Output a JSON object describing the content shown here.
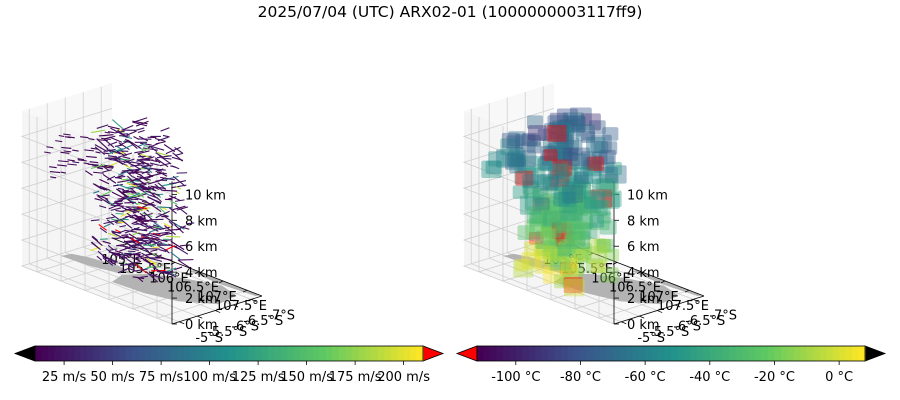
{
  "figure": {
    "title": "2025/07/04 (UTC) ARX02-01 (1000000003117ff9)"
  },
  "chart_data": [
    {
      "type": "scatter",
      "subtype": "3d-wind-barbs",
      "axes": {
        "x": {
          "ticks": [
            "105°E",
            "105.5°E",
            "106°E",
            "106.5°E",
            "107°E",
            "107.5°E"
          ],
          "lim": [
            104.7,
            107.7
          ]
        },
        "y": {
          "ticks": [
            "-5°S",
            "-5.5°S",
            "-6°S",
            "-6.5°S",
            "-7°S"
          ],
          "lim": [
            -7.2,
            -4.8
          ]
        },
        "z": {
          "ticks": [
            "0 km",
            "2 km",
            "4 km",
            "6 km",
            "8 km",
            "10 km"
          ],
          "lim": [
            0,
            11
          ]
        }
      },
      "colorbar": {
        "ticks": [
          "25 m/s",
          "50 m/s",
          "75 m/s",
          "100 m/s",
          "125 m/s",
          "150 m/s",
          "175 m/s",
          "200 m/s"
        ],
        "range": [
          10,
          210
        ],
        "extend": "both",
        "colormap": [
          "#440154",
          "#3b528b",
          "#21918c",
          "#5ec962",
          "#fde725"
        ],
        "under_color": "#000000",
        "over_color": "#ff0000"
      },
      "land_color": "#b3b3b3"
    },
    {
      "type": "scatter",
      "subtype": "3d-voxels",
      "axes": {
        "x": {
          "ticks": [
            "105°E",
            "105.5°E",
            "106°E",
            "106.5°E",
            "107°E",
            "107.5°E"
          ],
          "lim": [
            104.7,
            107.7
          ]
        },
        "y": {
          "ticks": [
            "-5°S",
            "-5.5°S",
            "-6°S",
            "-6.5°S",
            "-7°S"
          ],
          "lim": [
            -7.2,
            -4.8
          ]
        },
        "z": {
          "ticks": [
            "0 km",
            "2 km",
            "4 km",
            "6 km",
            "8 km",
            "10 km"
          ],
          "lim": [
            0,
            11
          ]
        }
      },
      "colorbar": {
        "ticks": [
          "-100 °C",
          "-80 °C",
          "-60 °C",
          "-40 °C",
          "-20 °C",
          "0 °C"
        ],
        "range": [
          -112,
          8
        ],
        "extend": "both",
        "colormap": [
          "#440154",
          "#3b528b",
          "#21918c",
          "#5ec962",
          "#fde725"
        ],
        "under_color": "#ff0000",
        "over_color": "#000000"
      },
      "land_color": "#b3b3b3"
    }
  ]
}
